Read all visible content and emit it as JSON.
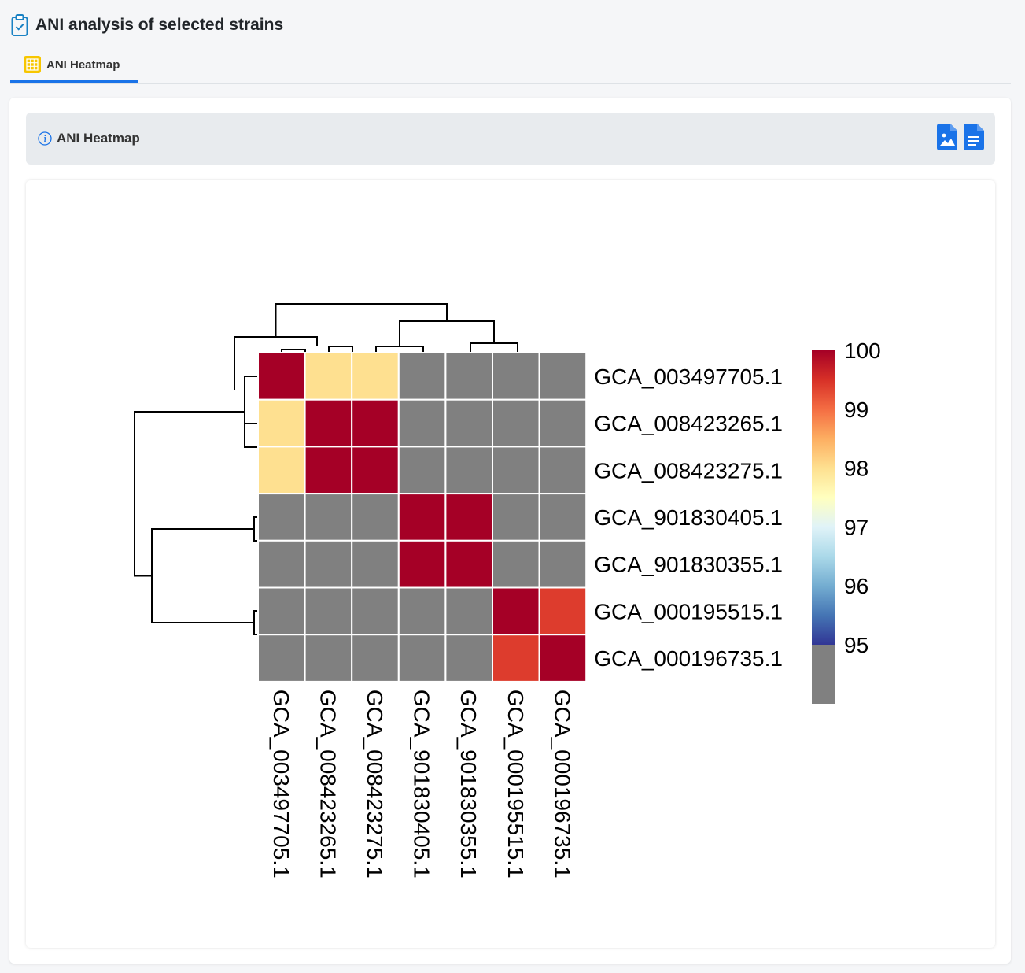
{
  "page": {
    "title": "ANI analysis of selected strains",
    "icon": "clipboard-check-icon"
  },
  "tabs": [
    {
      "label": "ANI Heatmap",
      "icon": "grid-table-icon",
      "active": true
    }
  ],
  "card": {
    "title": "ANI Heatmap",
    "icon": "info-icon",
    "buttons": [
      {
        "name": "download-image",
        "icon": "file-image-icon"
      },
      {
        "name": "download-data",
        "icon": "file-text-icon"
      }
    ]
  },
  "chart_data": {
    "type": "heatmap",
    "rows": [
      "GCA_003497705.1",
      "GCA_008423265.1",
      "GCA_008423275.1",
      "GCA_901830405.1",
      "GCA_901830355.1",
      "GCA_000195515.1",
      "GCA_000196735.1"
    ],
    "columns": [
      "GCA_003497705.1",
      "GCA_008423265.1",
      "GCA_008423275.1",
      "GCA_901830405.1",
      "GCA_901830355.1",
      "GCA_000195515.1",
      "GCA_000196735.1"
    ],
    "values": [
      [
        100,
        98,
        98,
        null,
        null,
        null,
        null
      ],
      [
        98,
        100,
        100,
        null,
        null,
        null,
        null
      ],
      [
        98,
        100,
        100,
        null,
        null,
        null,
        null
      ],
      [
        null,
        null,
        null,
        100,
        100,
        null,
        null
      ],
      [
        null,
        null,
        null,
        100,
        100,
        null,
        null
      ],
      [
        null,
        null,
        null,
        null,
        null,
        100,
        99.4
      ],
      [
        null,
        null,
        null,
        null,
        null,
        99.4,
        100
      ]
    ],
    "below_threshold_color": "#808080",
    "colorbar": {
      "min": 95,
      "max": 100,
      "ticks": [
        "100",
        "99",
        "98",
        "97",
        "96",
        "95"
      ],
      "colors": [
        "#313695",
        "#4575b4",
        "#74add1",
        "#abd9e9",
        "#e0f3f8",
        "#ffffbf",
        "#fee090",
        "#fdae61",
        "#f46d43",
        "#d73027",
        "#a50026"
      ]
    },
    "dendrograms": {
      "rows": true,
      "columns": true
    }
  }
}
